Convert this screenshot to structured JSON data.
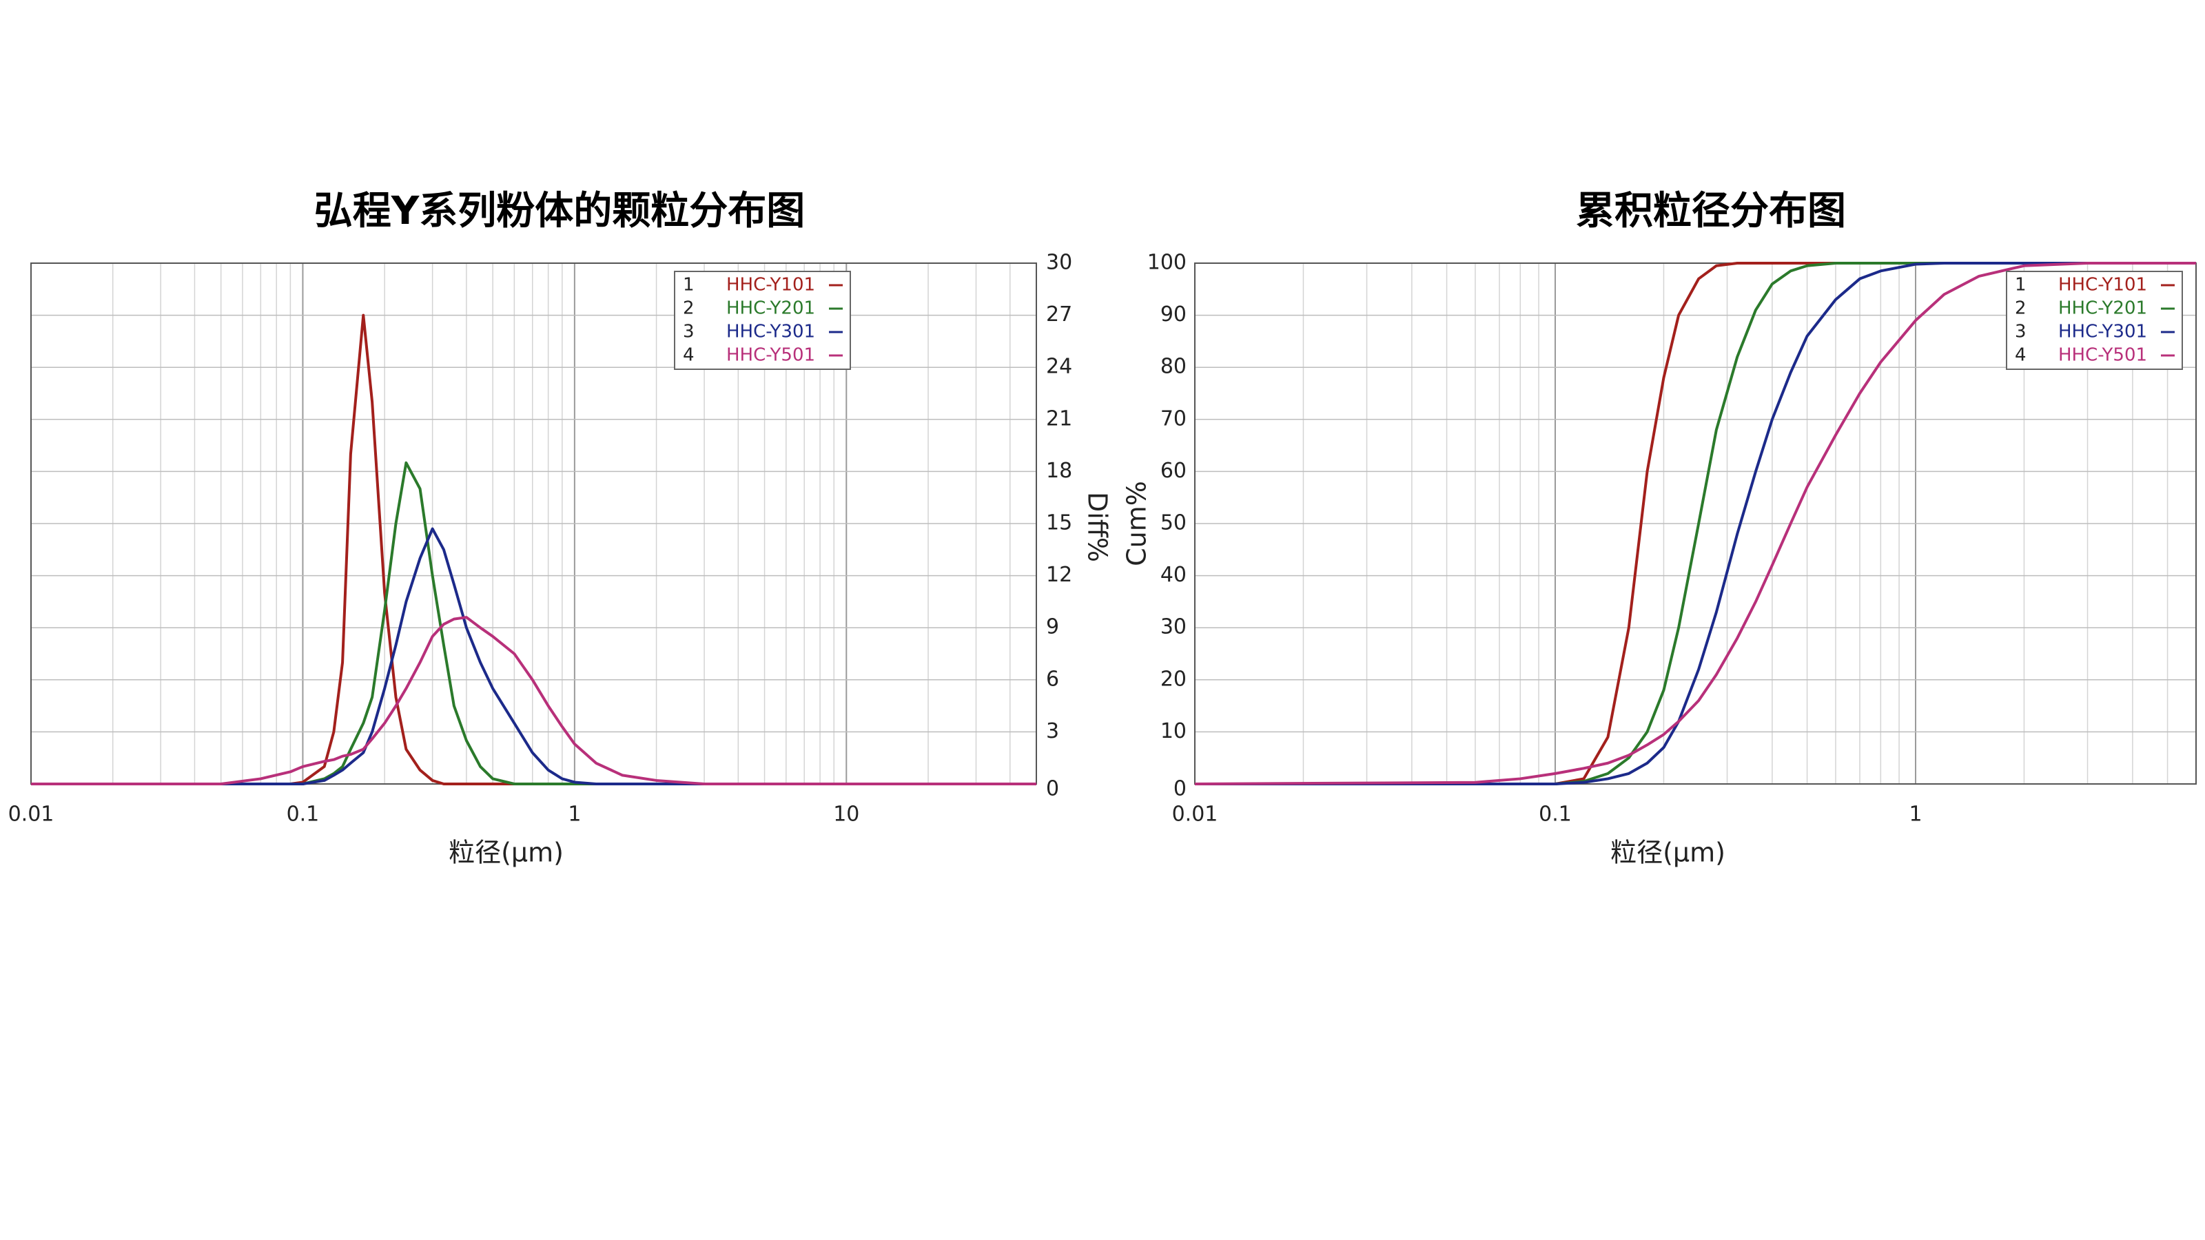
{
  "chart_data": [
    {
      "type": "line",
      "title": "弘程Y系列粉体的颗粒分布图",
      "x_label": "粒径(μm)",
      "y_label": "Diff%",
      "y_axis_side": "right",
      "log_x": true,
      "grid": true,
      "legend": "top-right",
      "xlim": [
        0.01,
        50
      ],
      "xticks": [
        0.01,
        0.1,
        1,
        10
      ],
      "ylim": [
        0,
        30
      ],
      "yticks": [
        0,
        3,
        6,
        9,
        12,
        15,
        18,
        21,
        24,
        27,
        30
      ],
      "x": [
        0.01,
        0.05,
        0.07,
        0.09,
        0.1,
        0.12,
        0.13,
        0.14,
        0.15,
        0.167,
        0.18,
        0.2,
        0.22,
        0.24,
        0.27,
        0.3,
        0.33,
        0.36,
        0.4,
        0.45,
        0.5,
        0.6,
        0.7,
        0.8,
        0.9,
        1,
        1.2,
        1.5,
        2,
        3,
        10,
        50
      ],
      "series": [
        {
          "number": "1",
          "name": "HHC-Y101",
          "color": "#a3201c",
          "values": [
            0,
            0,
            0,
            0,
            0.1,
            1,
            3,
            7,
            19,
            27,
            22,
            11,
            5,
            2,
            0.8,
            0.2,
            0,
            0,
            0,
            0,
            0,
            0,
            0,
            0,
            0,
            0,
            0,
            0,
            0,
            0,
            0,
            0
          ]
        },
        {
          "number": "2",
          "name": "HHC-Y201",
          "color": "#2b7a2b",
          "values": [
            0,
            0,
            0,
            0,
            0,
            0.3,
            0.6,
            1,
            2,
            3.5,
            5,
            10,
            15,
            18.5,
            17,
            12,
            8,
            4.5,
            2.5,
            1,
            0.3,
            0,
            0,
            0,
            0,
            0,
            0,
            0,
            0,
            0,
            0,
            0
          ]
        },
        {
          "number": "3",
          "name": "HHC-Y301",
          "color": "#1c2a8a",
          "values": [
            0,
            0,
            0,
            0,
            0,
            0.2,
            0.5,
            0.8,
            1.2,
            1.8,
            3,
            5.5,
            8,
            10.5,
            13,
            14.7,
            13.5,
            11.5,
            9,
            7,
            5.5,
            3.5,
            1.8,
            0.8,
            0.3,
            0.1,
            0,
            0,
            0,
            0,
            0,
            0
          ]
        },
        {
          "number": "4",
          "name": "HHC-Y501",
          "color": "#b8307a",
          "values": [
            0,
            0,
            0.3,
            0.7,
            1,
            1.3,
            1.4,
            1.6,
            1.7,
            2,
            2.6,
            3.5,
            4.5,
            5.5,
            7,
            8.5,
            9.2,
            9.5,
            9.6,
            9,
            8.5,
            7.5,
            6,
            4.5,
            3.3,
            2.3,
            1.2,
            0.5,
            0.2,
            0,
            0,
            0
          ]
        }
      ]
    },
    {
      "type": "line",
      "title": "累积粒径分布图",
      "x_label": "粒径(μm)",
      "y_label": "Cum%",
      "y_axis_side": "left",
      "log_x": true,
      "grid": true,
      "legend": "top-right",
      "xlim": [
        0.01,
        6
      ],
      "xticks": [
        0.01,
        0.1,
        1
      ],
      "ylim": [
        0,
        100
      ],
      "yticks": [
        0,
        10,
        20,
        30,
        40,
        50,
        60,
        70,
        80,
        90,
        100
      ],
      "x": [
        0.01,
        0.06,
        0.08,
        0.1,
        0.12,
        0.14,
        0.16,
        0.18,
        0.2,
        0.22,
        0.25,
        0.28,
        0.32,
        0.36,
        0.4,
        0.45,
        0.5,
        0.6,
        0.7,
        0.8,
        1,
        1.2,
        1.5,
        2,
        3,
        6
      ],
      "series": [
        {
          "number": "1",
          "name": "HHC-Y101",
          "color": "#a3201c",
          "values": [
            0,
            0,
            0,
            0,
            1,
            9,
            30,
            60,
            78,
            90,
            97,
            99.5,
            100,
            100,
            100,
            100,
            100,
            100,
            100,
            100,
            100,
            100,
            100,
            100,
            100,
            100
          ]
        },
        {
          "number": "2",
          "name": "HHC-Y201",
          "color": "#2b7a2b",
          "values": [
            0,
            0,
            0,
            0,
            0.5,
            2,
            5,
            10,
            18,
            30,
            50,
            68,
            82,
            91,
            96,
            98.5,
            99.5,
            100,
            100,
            100,
            100,
            100,
            100,
            100,
            100,
            100
          ]
        },
        {
          "number": "3",
          "name": "HHC-Y301",
          "color": "#1c2a8a",
          "values": [
            0,
            0,
            0,
            0,
            0.3,
            1,
            2,
            4,
            7,
            12,
            22,
            33,
            48,
            60,
            70,
            79,
            86,
            93,
            97,
            98.5,
            99.8,
            100,
            100,
            100,
            100,
            100
          ]
        },
        {
          "number": "4",
          "name": "HHC-Y501",
          "color": "#b8307a",
          "values": [
            0,
            0.3,
            1,
            2,
            3,
            4,
            5.5,
            7.5,
            9.5,
            12,
            16,
            21,
            28,
            35,
            42,
            50,
            57,
            67,
            75,
            81,
            89,
            94,
            97.5,
            99.5,
            100,
            100
          ]
        }
      ]
    }
  ]
}
